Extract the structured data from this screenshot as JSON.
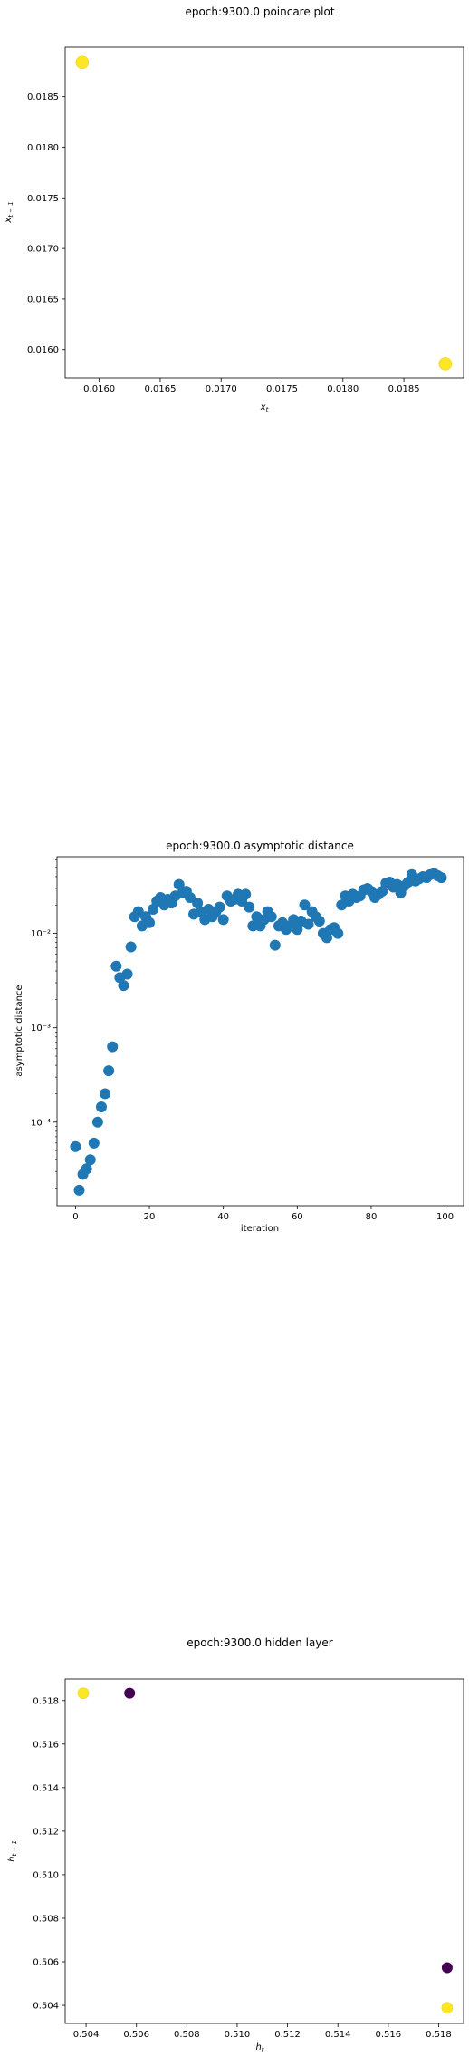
{
  "chart_data": [
    {
      "id": "poincare",
      "type": "scatter",
      "title": "epoch:9300.0 poincare plot",
      "xlabel": "x_t",
      "ylabel": "x_{t-1}",
      "xlim": [
        0.01572,
        0.01899
      ],
      "ylim": [
        0.01572,
        0.01899
      ],
      "xticks": [
        0.016,
        0.0165,
        0.017,
        0.0175,
        0.018,
        0.0185
      ],
      "xtick_labels": [
        "0.0160",
        "0.0165",
        "0.0170",
        "0.0175",
        "0.0180",
        "0.0185"
      ],
      "yticks": [
        0.016,
        0.0165,
        0.017,
        0.0175,
        0.018,
        0.0185
      ],
      "ytick_labels": [
        "0.0160",
        "0.0165",
        "0.0170",
        "0.0175",
        "0.0180",
        "0.0185"
      ],
      "marker_color": "#fde725",
      "points": [
        {
          "x": 0.01586,
          "y": 0.01884
        },
        {
          "x": 0.01884,
          "y": 0.01586
        }
      ]
    },
    {
      "id": "asymptotic",
      "type": "scatter",
      "scale_y": "log",
      "title": "epoch:9300.0 asymptotic distance",
      "xlabel": "iteration",
      "ylabel": "asymptotic distance",
      "xlim": [
        -5,
        105
      ],
      "ylim": [
        1.3e-05,
        0.065
      ],
      "xticks": [
        0,
        20,
        40,
        60,
        80,
        100
      ],
      "xtick_labels": [
        "0",
        "20",
        "40",
        "60",
        "80",
        "100"
      ],
      "yticks": [
        0.0001,
        0.001,
        0.01
      ],
      "ytick_labels": [
        "10⁻⁴",
        "10⁻³",
        "10⁻²"
      ],
      "marker_color": "#1f77b4",
      "x": [
        0,
        1,
        2,
        3,
        4,
        5,
        6,
        7,
        8,
        9,
        10,
        11,
        12,
        13,
        14,
        15,
        16,
        17,
        18,
        19,
        20,
        21,
        22,
        23,
        24,
        25,
        26,
        27,
        28,
        29,
        30,
        31,
        32,
        33,
        34,
        35,
        36,
        37,
        38,
        39,
        40,
        41,
        42,
        43,
        44,
        45,
        46,
        47,
        48,
        49,
        50,
        51,
        52,
        53,
        54,
        55,
        56,
        57,
        58,
        59,
        60,
        61,
        62,
        63,
        64,
        65,
        66,
        67,
        68,
        69,
        70,
        71,
        72,
        73,
        74,
        75,
        76,
        77,
        78,
        79,
        80,
        81,
        82,
        83,
        84,
        85,
        86,
        87,
        88,
        89,
        90,
        91,
        92,
        93,
        94,
        95,
        96,
        97,
        98,
        99
      ],
      "y": [
        5.5e-05,
        1.9e-05,
        2.8e-05,
        3.2e-05,
        4e-05,
        6e-05,
        0.0001,
        0.000145,
        0.0002,
        0.00035,
        0.00063,
        0.0045,
        0.0034,
        0.0028,
        0.0037,
        0.0072,
        0.015,
        0.017,
        0.012,
        0.015,
        0.013,
        0.018,
        0.022,
        0.024,
        0.02,
        0.023,
        0.021,
        0.025,
        0.033,
        0.027,
        0.028,
        0.024,
        0.016,
        0.021,
        0.017,
        0.014,
        0.018,
        0.015,
        0.017,
        0.019,
        0.014,
        0.025,
        0.022,
        0.023,
        0.026,
        0.022,
        0.026,
        0.019,
        0.012,
        0.015,
        0.012,
        0.014,
        0.017,
        0.015,
        0.0075,
        0.012,
        0.013,
        0.011,
        0.012,
        0.014,
        0.011,
        0.0135,
        0.02,
        0.0125,
        0.017,
        0.015,
        0.0135,
        0.01,
        0.009,
        0.011,
        0.0115,
        0.01,
        0.02,
        0.025,
        0.022,
        0.026,
        0.024,
        0.025,
        0.029,
        0.03,
        0.028,
        0.024,
        0.026,
        0.028,
        0.034,
        0.035,
        0.031,
        0.033,
        0.027,
        0.032,
        0.035,
        0.042,
        0.036,
        0.038,
        0.04,
        0.039,
        0.042,
        0.043,
        0.041,
        0.039
      ]
    },
    {
      "id": "hidden",
      "type": "scatter",
      "title": "epoch:9300.0 hidden layer",
      "xlabel": "h_t",
      "ylabel": "h_{t-1}",
      "xlim": [
        0.50317,
        0.51899
      ],
      "ylim": [
        0.50317,
        0.51899
      ],
      "xticks": [
        0.504,
        0.506,
        0.508,
        0.51,
        0.512,
        0.514,
        0.516,
        0.518
      ],
      "xtick_labels": [
        "0.504",
        "0.506",
        "0.508",
        "0.510",
        "0.512",
        "0.514",
        "0.516",
        "0.518"
      ],
      "yticks": [
        0.504,
        0.506,
        0.508,
        0.51,
        0.512,
        0.514,
        0.516,
        0.518
      ],
      "ytick_labels": [
        "0.504",
        "0.506",
        "0.508",
        "0.510",
        "0.512",
        "0.514",
        "0.516",
        "0.518"
      ],
      "points": [
        {
          "x": 0.50389,
          "y": 0.51834,
          "color": "#fde725"
        },
        {
          "x": 0.50573,
          "y": 0.51834,
          "color": "#440154"
        },
        {
          "x": 0.51834,
          "y": 0.50573,
          "color": "#440154"
        },
        {
          "x": 0.51834,
          "y": 0.50389,
          "color": "#fde725"
        }
      ]
    }
  ]
}
